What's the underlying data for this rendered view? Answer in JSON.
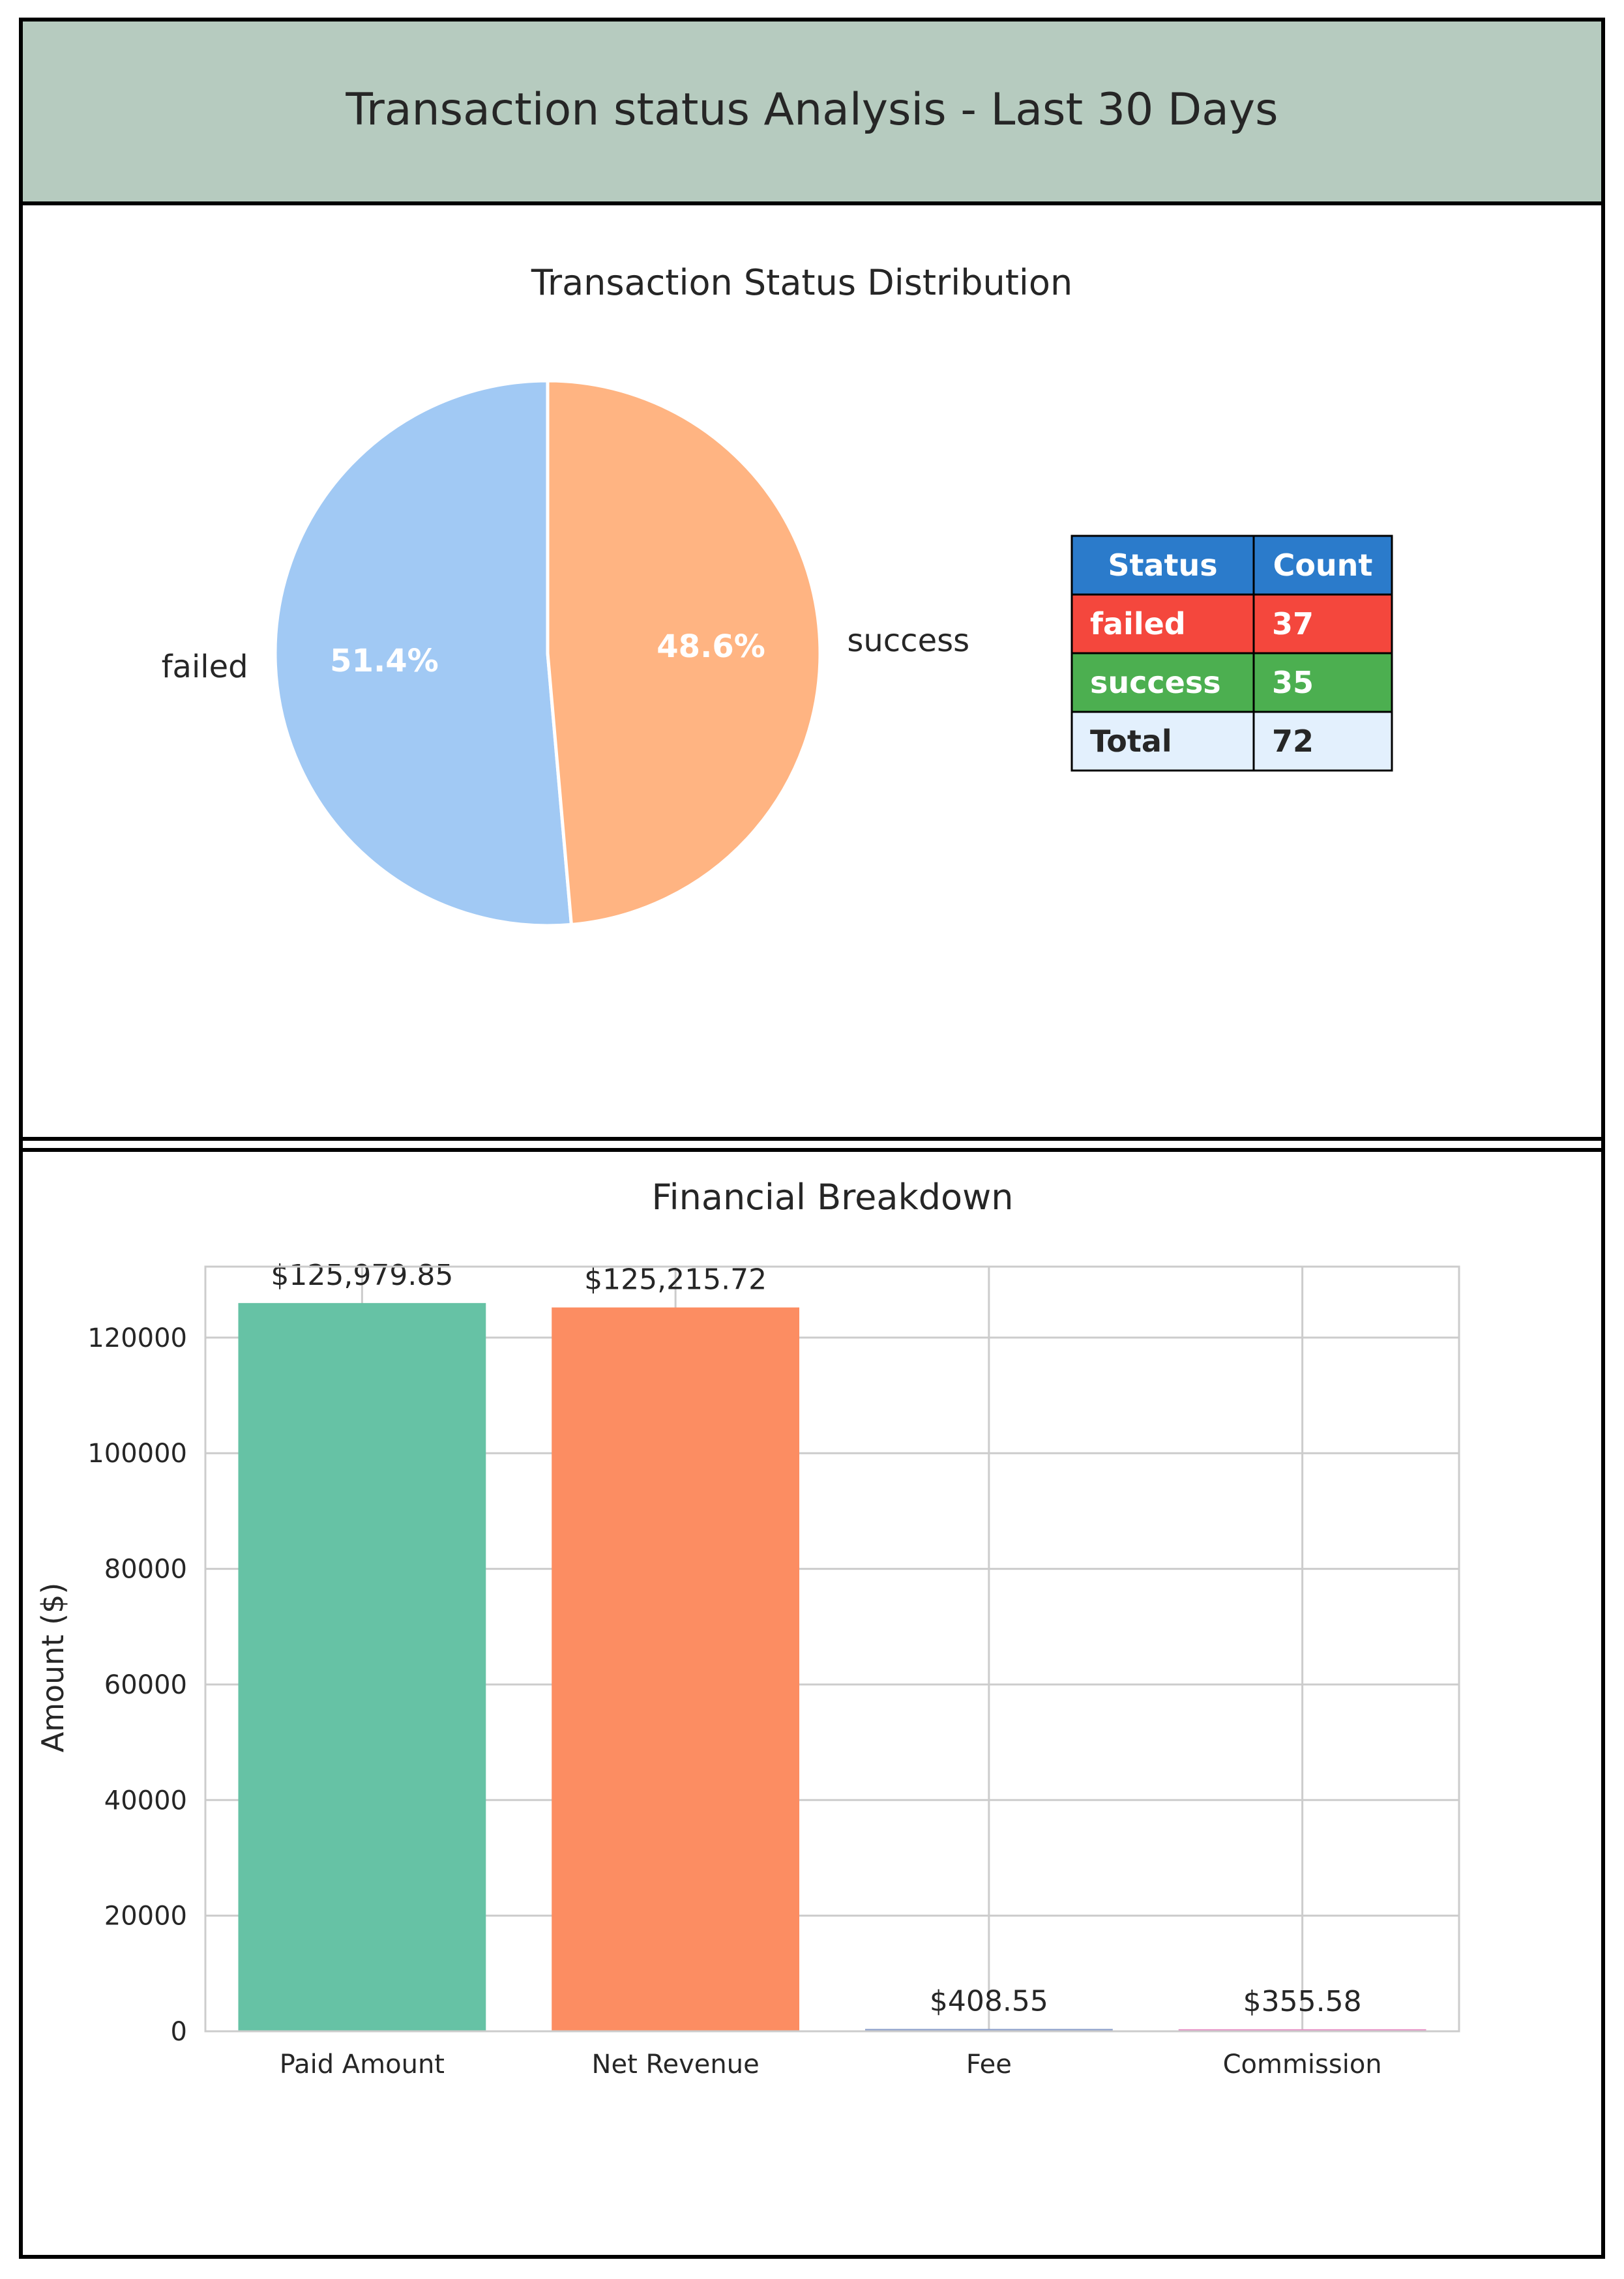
{
  "report": {
    "title": "Transaction status Analysis - Last 30 Days",
    "header_color": "#b6cbbf"
  },
  "chart_data": [
    {
      "type": "pie",
      "title": "Transaction Status Distribution",
      "slices": [
        {
          "label": "failed",
          "value": 37,
          "percent_label": "51.4%",
          "color": "#a1c9f4"
        },
        {
          "label": "success",
          "value": 35,
          "percent_label": "48.6%",
          "color": "#ffb482"
        }
      ]
    },
    {
      "type": "table",
      "columns": [
        "Status",
        "Count"
      ],
      "header_color": "#2b7bcb",
      "rows": [
        {
          "cells": [
            "failed",
            "37"
          ],
          "color": "#f4473d",
          "text_color": "#ffffff"
        },
        {
          "cells": [
            "success",
            "35"
          ],
          "color": "#4caf50",
          "text_color": "#ffffff"
        },
        {
          "cells": [
            "Total",
            "72"
          ],
          "color": "#e3f0fd",
          "text_color": "#262626"
        }
      ]
    },
    {
      "type": "bar",
      "title": "Financial Breakdown",
      "ylabel": "Amount ($)",
      "xlabel": "",
      "categories": [
        "Paid Amount",
        "Net Revenue",
        "Fee",
        "Commission"
      ],
      "values": [
        125979.85,
        125215.72,
        408.55,
        355.58
      ],
      "value_labels": [
        "$125,979.85",
        "$125,215.72",
        "$408.55",
        "$355.58"
      ],
      "colors": [
        "#66c2a5",
        "#fc8d62",
        "#8da0cb",
        "#e78ac3"
      ],
      "ylim": [
        0,
        132278.84
      ],
      "yticks": [
        "0",
        "20000",
        "40000",
        "60000",
        "80000",
        "100000",
        "120000"
      ],
      "ytick_values": [
        0,
        20000,
        40000,
        60000,
        80000,
        100000,
        120000
      ],
      "grid": true
    }
  ]
}
